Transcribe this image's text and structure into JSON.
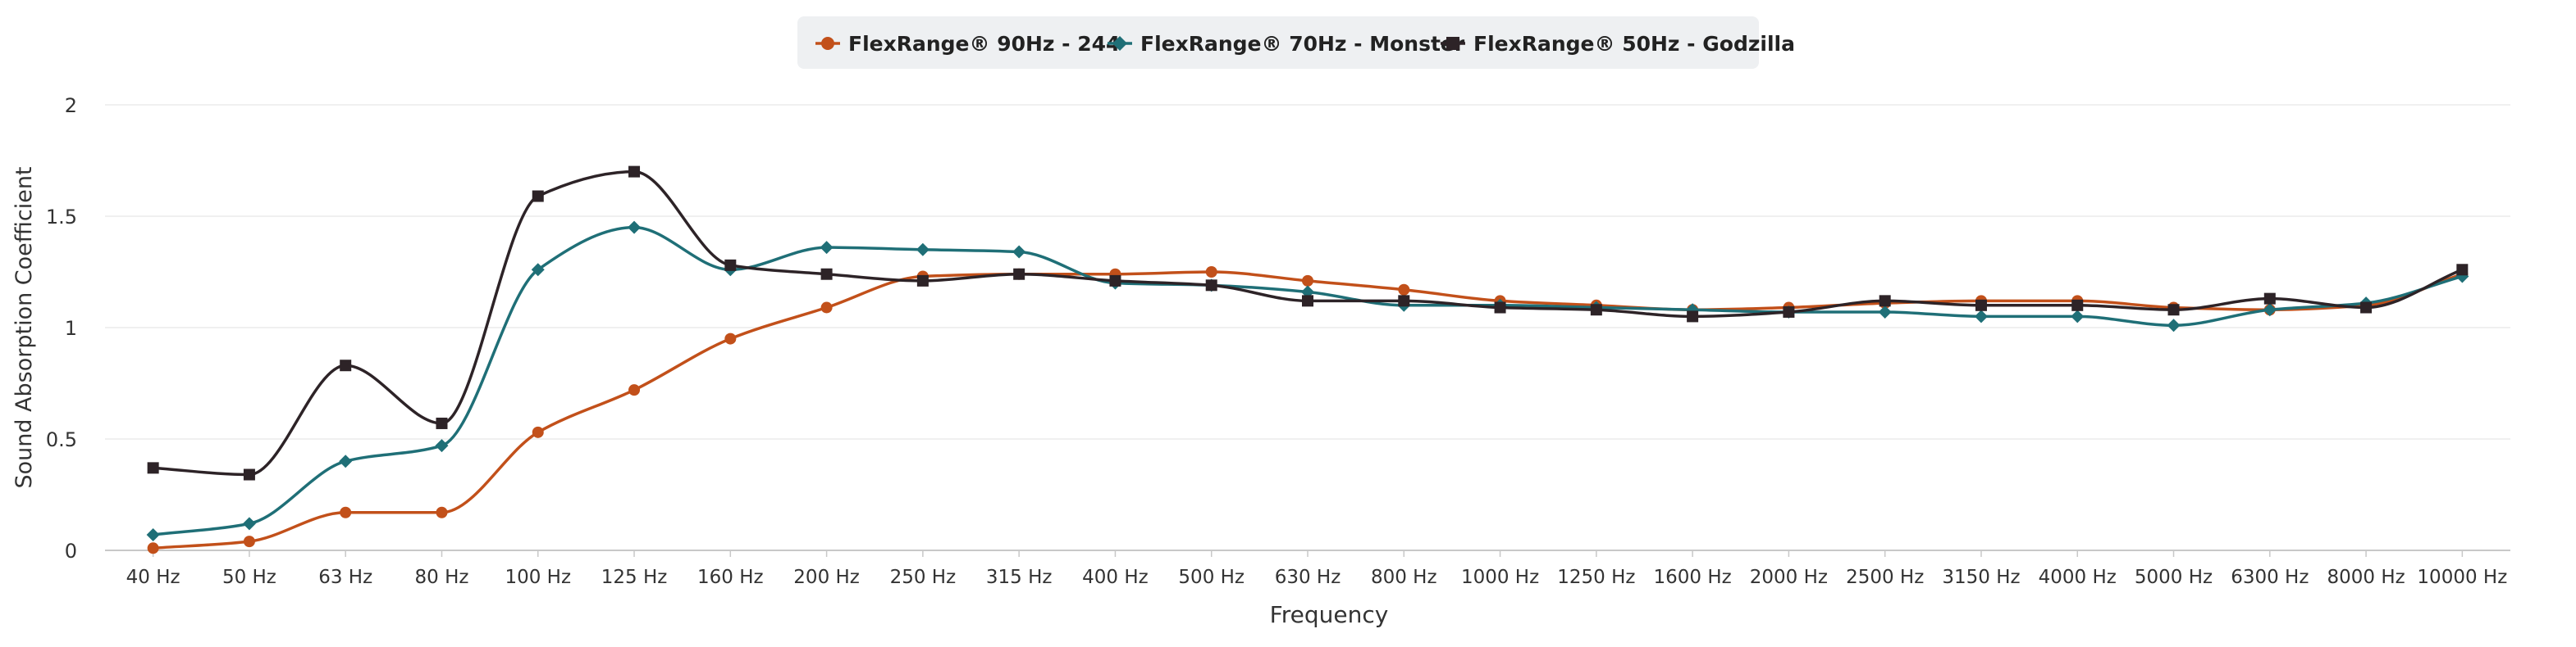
{
  "chart_data": {
    "type": "line",
    "title": "",
    "xlabel": "Frequency",
    "ylabel": "Sound Absorption Coefficient",
    "ylim": [
      0,
      2
    ],
    "yticks": [
      0,
      0.5,
      1,
      1.5,
      2
    ],
    "grid": true,
    "legend_position": "top-center",
    "curve": "smooth",
    "categories": [
      "40 Hz",
      "50 Hz",
      "63 Hz",
      "80 Hz",
      "100 Hz",
      "125 Hz",
      "160 Hz",
      "200 Hz",
      "250 Hz",
      "315 Hz",
      "400 Hz",
      "500 Hz",
      "630 Hz",
      "800 Hz",
      "1000 Hz",
      "1250 Hz",
      "1600 Hz",
      "2000 Hz",
      "2500 Hz",
      "3150 Hz",
      "4000 Hz",
      "5000 Hz",
      "6300 Hz",
      "8000 Hz",
      "10000 Hz"
    ],
    "series": [
      {
        "name": "FlexRange® 90Hz - 244",
        "color": "#c2501a",
        "marker": "circle",
        "values": [
          0.01,
          0.04,
          0.17,
          0.17,
          0.53,
          0.72,
          0.95,
          1.09,
          1.23,
          1.24,
          1.24,
          1.25,
          1.21,
          1.17,
          1.12,
          1.1,
          1.08,
          1.09,
          1.11,
          1.12,
          1.12,
          1.09,
          1.08,
          1.1,
          1.24
        ]
      },
      {
        "name": "FlexRange® 70Hz - Monster",
        "color": "#1f6f77",
        "marker": "diamond",
        "values": [
          0.07,
          0.12,
          0.4,
          0.47,
          1.26,
          1.45,
          1.26,
          1.36,
          1.35,
          1.34,
          1.2,
          1.19,
          1.16,
          1.1,
          1.1,
          1.09,
          1.08,
          1.07,
          1.07,
          1.05,
          1.05,
          1.01,
          1.08,
          1.11,
          1.23
        ]
      },
      {
        "name": "FlexRange® 50Hz - Godzilla",
        "color": "#2d2327",
        "marker": "square",
        "values": [
          0.37,
          0.34,
          0.83,
          0.57,
          1.59,
          1.7,
          1.28,
          1.24,
          1.21,
          1.24,
          1.21,
          1.19,
          1.12,
          1.12,
          1.09,
          1.08,
          1.05,
          1.07,
          1.12,
          1.1,
          1.1,
          1.08,
          1.13,
          1.09,
          1.26
        ]
      }
    ]
  }
}
